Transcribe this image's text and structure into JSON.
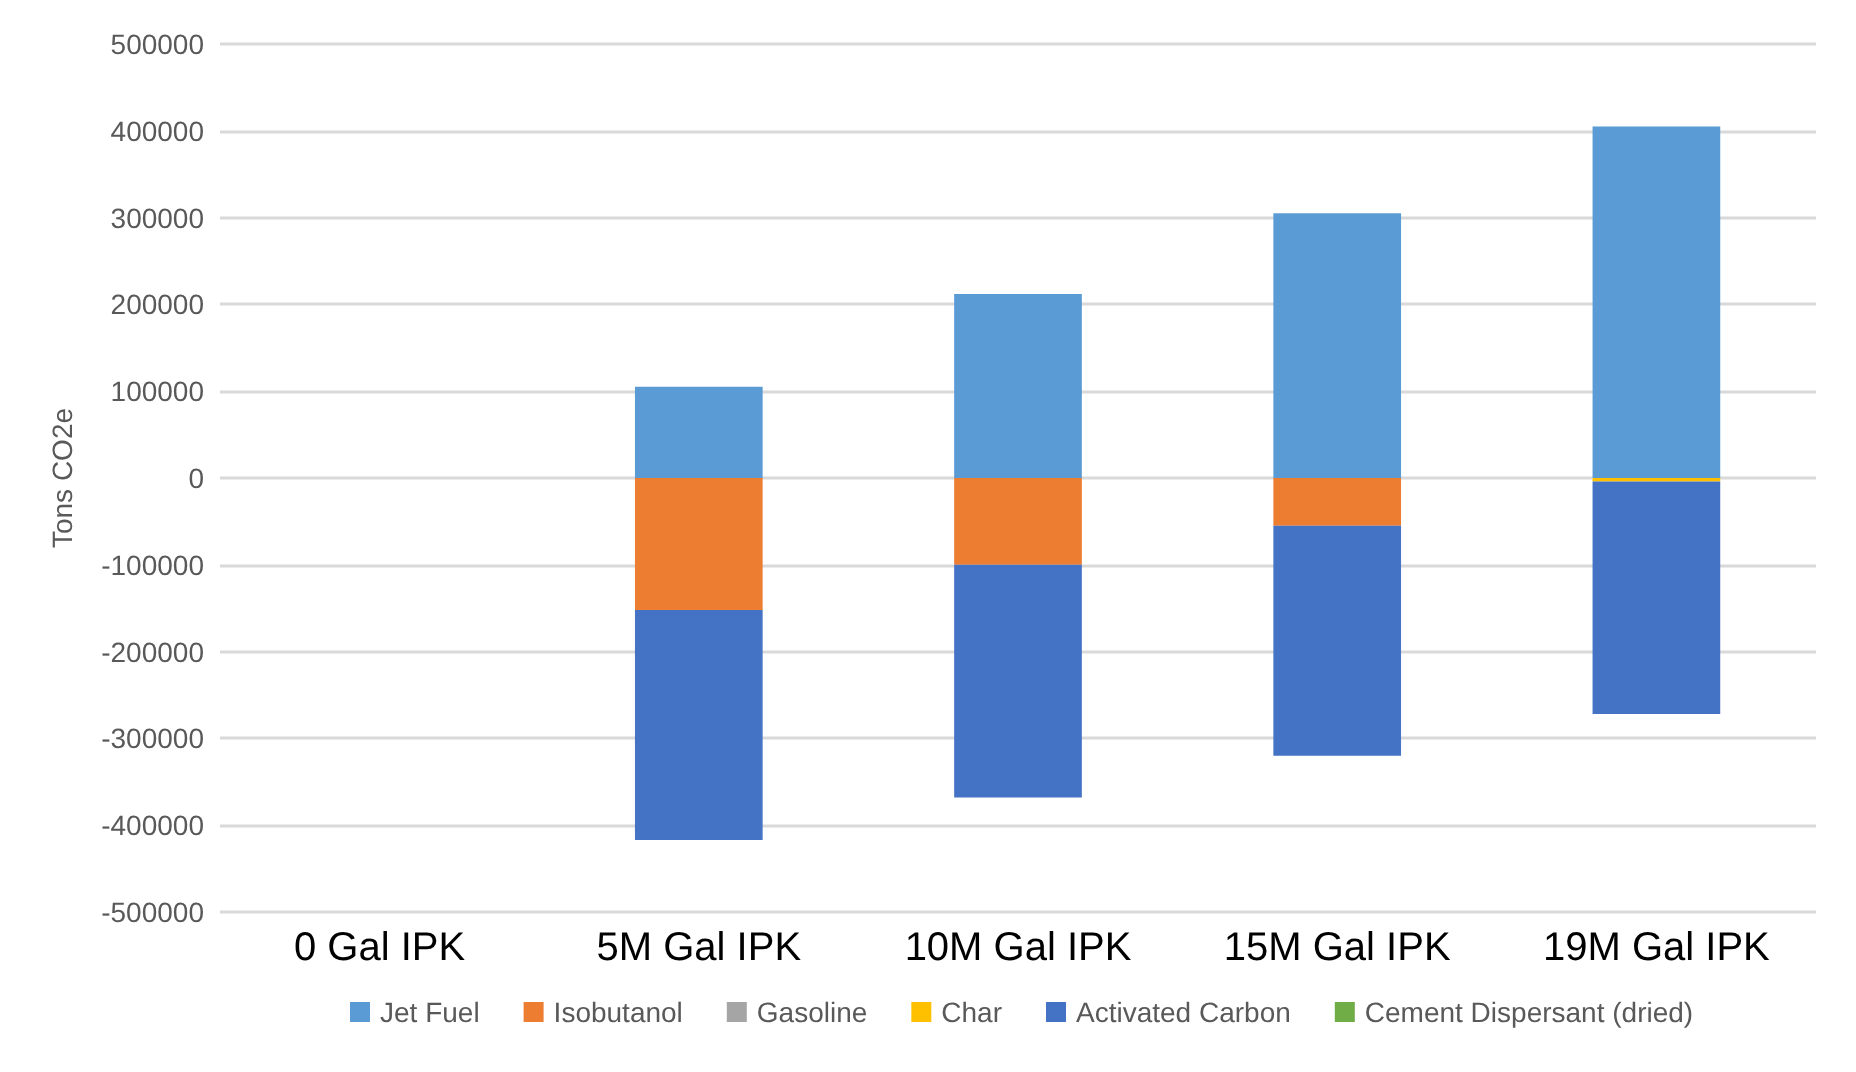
{
  "chart_data": {
    "type": "bar",
    "ylabel": "Tons CO2e",
    "categories": [
      "0 Gal IPK",
      "5M Gal IPK",
      "10M Gal IPK",
      "15M Gal IPK",
      "19M Gal IPK"
    ],
    "series": [
      {
        "name": "Jet Fuel",
        "color": "#5b9bd5",
        "values": [
          0,
          105000,
          212000,
          305000,
          405000
        ]
      },
      {
        "name": "Isobutanol",
        "color": "#ed7d31",
        "values": [
          0,
          -152000,
          -100000,
          -55000,
          0
        ]
      },
      {
        "name": "Gasoline",
        "color": "#a5a5a5",
        "values": [
          0,
          0,
          0,
          0,
          0
        ]
      },
      {
        "name": "Char",
        "color": "#ffc000",
        "values": [
          0,
          0,
          0,
          0,
          -4000
        ]
      },
      {
        "name": "Activated Carbon",
        "color": "#4472c4",
        "values": [
          0,
          -265000,
          -268000,
          -265000,
          -268000
        ]
      },
      {
        "name": "Cement Dispersant (dried)",
        "color": "#70ad47",
        "values": [
          0,
          0,
          0,
          0,
          0
        ]
      }
    ],
    "stacked": true,
    "ylim": [
      -500000,
      500000
    ],
    "yticks": [
      -500000,
      -400000,
      -300000,
      -200000,
      -100000,
      0,
      100000,
      200000,
      300000,
      400000,
      500000
    ],
    "grid": "y",
    "legend": "bottom"
  }
}
